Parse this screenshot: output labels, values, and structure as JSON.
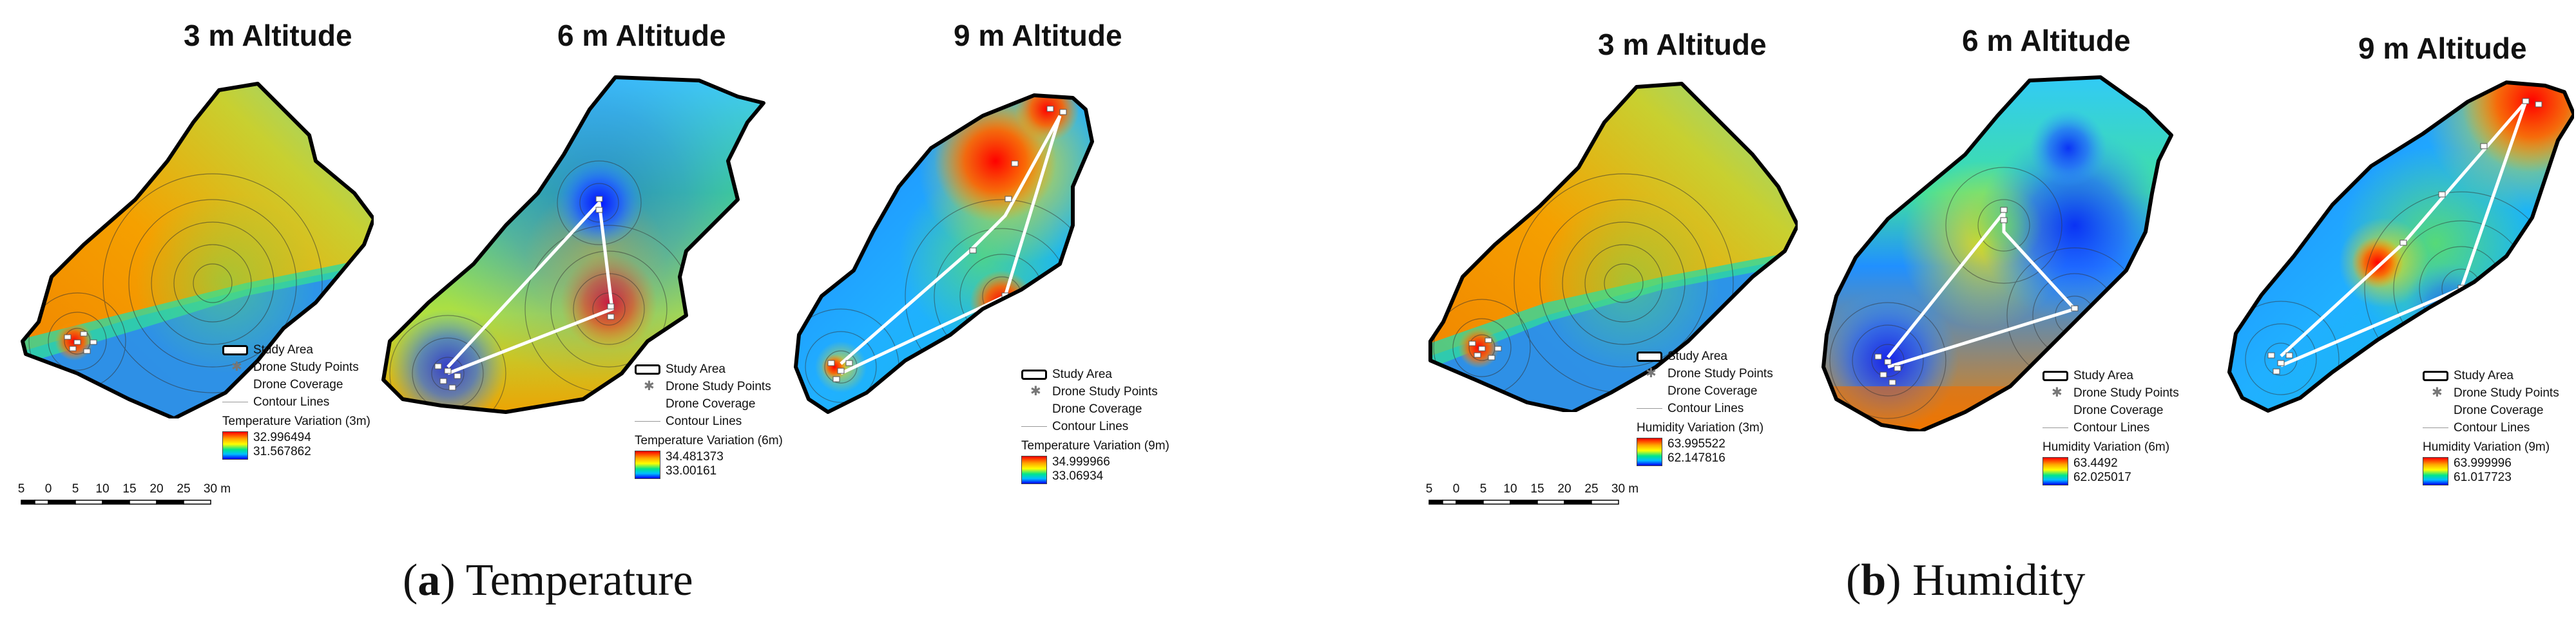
{
  "panels": {
    "temp3": {
      "title": "3 m Altitude",
      "var_title": "Temperature Variation (3m)",
      "max": "32.996494",
      "min": "31.567862"
    },
    "temp6": {
      "title": "6 m Altitude",
      "var_title": "Temperature Variation (6m)",
      "max": "34.481373",
      "min": "33.00161"
    },
    "temp9": {
      "title": "9 m Altitude",
      "var_title": "Temperature Variation (9m)",
      "max": "34.999966",
      "min": "33.06934"
    },
    "hum3": {
      "title": "3 m Altitude",
      "var_title": "Humidity Variation (3m)",
      "max": "63.995522",
      "min": "62.147816"
    },
    "hum6": {
      "title": "6 m Altitude",
      "var_title": "Humidity Variation (6m)",
      "max": "63.4492",
      "min": "62.025017"
    },
    "hum9": {
      "title": "9 m Altitude",
      "var_title": "Humidity Variation (9m)",
      "max": "63.999996",
      "min": "61.017723"
    }
  },
  "legend": {
    "study_area": "Study Area",
    "drone_points": "Drone Study Points",
    "drone_coverage": "Drone Coverage",
    "contour_lines": "Contour Lines"
  },
  "scalebar": {
    "labels": [
      "5",
      "0",
      "5",
      "10",
      "15",
      "20",
      "25",
      "30 m"
    ]
  },
  "captions": {
    "a": {
      "letter": "a",
      "text": "Temperature"
    },
    "b": {
      "letter": "b",
      "text": "Humidity"
    }
  },
  "colors": {
    "high": "#ff0000",
    "mid_high": "#ffa500",
    "mid": "#ffff00",
    "mid_low": "#00e58c",
    "low": "#0000ff"
  }
}
